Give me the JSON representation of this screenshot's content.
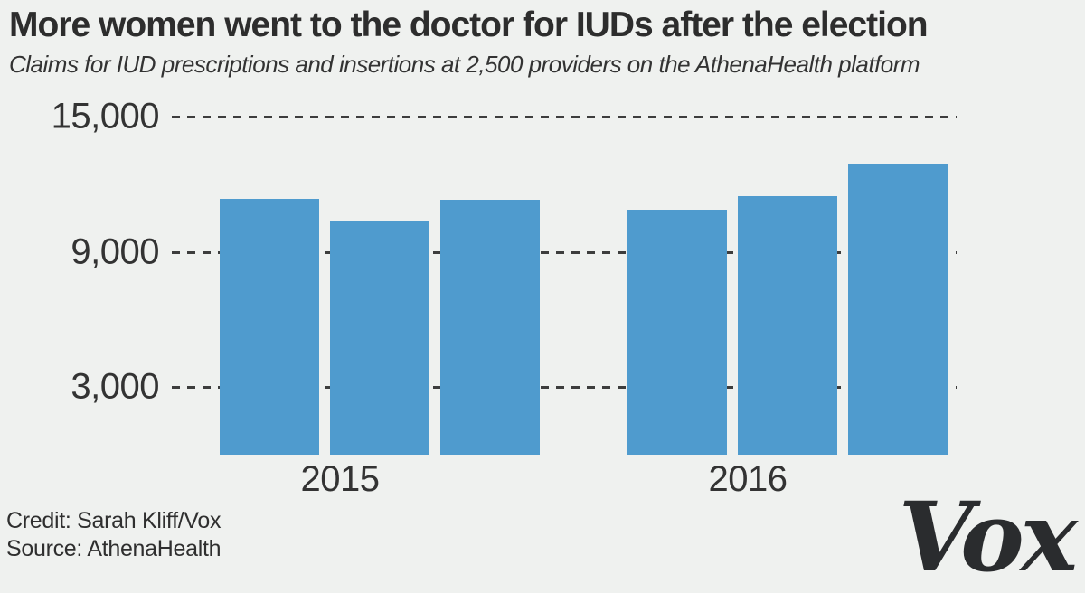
{
  "page": {
    "background": "#eff1ef",
    "title": "More women went to the doctor for IUDs after the election",
    "subtitle": "Claims for IUD prescriptions and insertions at 2,500 providers on the AthenaHealth platform",
    "credit": "Credit: Sarah Kliff/Vox",
    "source": "Source: AthenaHealth",
    "logo_text": "Vox"
  },
  "chart_data": {
    "type": "bar",
    "title": "More women went to the doctor for IUDs after the election",
    "subtitle": "Claims for IUD prescriptions and insertions at 2,500 providers on the AthenaHealth platform",
    "categories": [
      "2015",
      "2016"
    ],
    "groups": [
      {
        "label": "2015",
        "values": [
          11360,
          10400,
          11300
        ]
      },
      {
        "label": "2016",
        "values": [
          10880,
          11480,
          12900
        ]
      }
    ],
    "yticks": [
      3000,
      9000,
      15000
    ],
    "ytick_labels": [
      "3,000",
      "9,000",
      "15,000"
    ],
    "ylim": [
      0,
      15000
    ],
    "xlabel": "",
    "ylabel": "",
    "grid": "horizontal-dashed",
    "legend": "none",
    "bar_color": "#4f9bce",
    "grid_color": "#3d3d3d",
    "axis_text_color": "#333333"
  }
}
